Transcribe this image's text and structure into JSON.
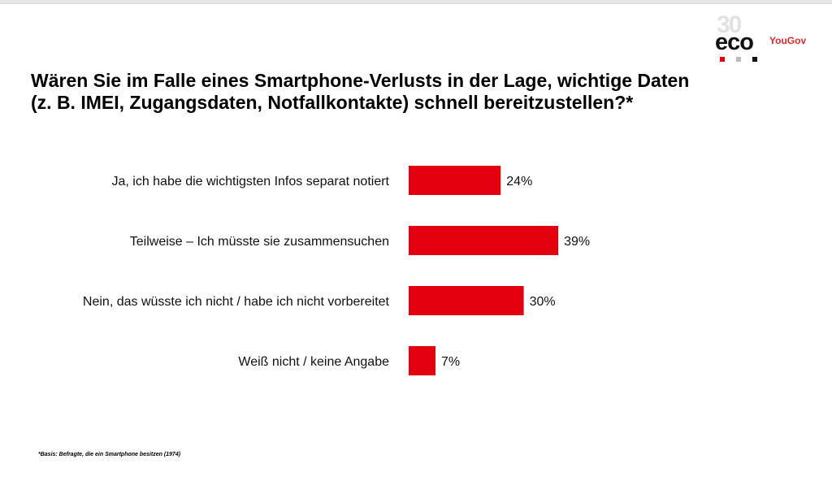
{
  "logo": {
    "number": "30",
    "name": "eco",
    "partner": "YouGov",
    "colors": {
      "dot1": "#e3000f",
      "dot2": "#bdbdbd",
      "dot3": "#111111"
    }
  },
  "title_lines": [
    "Wären Sie im Falle eines Smartphone-Verlusts in der Lage, wichtige Daten",
    "(z. B. IMEI, Zugangsdaten, Notfallkontakte) schnell bereitzustellen?*"
  ],
  "footnote": "*Basis: Befragte, die ein Smartphone besitzen (1974)",
  "chart_data": {
    "type": "bar",
    "orientation": "horizontal",
    "categories": [
      "Ja, ich habe die wichtigsten Infos separat notiert",
      "Teilweise – Ich müsste sie zusammensuchen",
      "Nein, das wüsste ich nicht / habe ich nicht vorbereitet",
      "Weiß nicht / keine Angabe"
    ],
    "values": [
      24,
      39,
      30,
      7
    ],
    "value_labels": [
      "24%",
      "39%",
      "30%",
      "7%"
    ],
    "unit": "%",
    "bar_color": "#e3000f",
    "grid": false,
    "legend": false
  }
}
